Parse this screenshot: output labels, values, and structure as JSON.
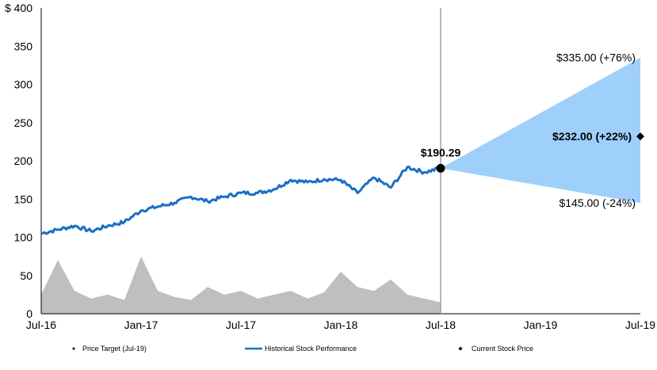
{
  "chart_data": {
    "type": "line",
    "x_ticks": [
      "Jul-16",
      "Jan-17",
      "Jul-17",
      "Jan-18",
      "Jul-18",
      "Jan-19",
      "Jul-19"
    ],
    "y_ticks": [
      "$ 400",
      "350",
      "300",
      "250",
      "200",
      "150",
      "100",
      "50",
      "0"
    ],
    "ylim": [
      0,
      400
    ],
    "grid": false,
    "legend_position": "bottom",
    "legend": [
      {
        "label": "Price Target (Jul-19)",
        "marker": "dot"
      },
      {
        "label": "Historical Stock Performance",
        "marker": "line"
      },
      {
        "label": "Current Stock Price",
        "marker": "diamond"
      }
    ],
    "series": [
      {
        "name": "Historical Stock Performance",
        "color": "#1a6ec8",
        "x": [
          "2016-07",
          "2016-08",
          "2016-09",
          "2016-10",
          "2016-11",
          "2016-12",
          "2017-01",
          "2017-02",
          "2017-03",
          "2017-04",
          "2017-05",
          "2017-06",
          "2017-07",
          "2017-08",
          "2017-09",
          "2017-10",
          "2017-11",
          "2017-12",
          "2018-01",
          "2018-02",
          "2018-03",
          "2018-04",
          "2018-05",
          "2018-06",
          "2018-07"
        ],
        "y": [
          105,
          110,
          115,
          108,
          115,
          120,
          135,
          140,
          145,
          153,
          147,
          153,
          158,
          158,
          163,
          175,
          172,
          176,
          175,
          158,
          178,
          165,
          192,
          185,
          190.29
        ]
      }
    ],
    "volume": {
      "color": "#bfbfbf",
      "x": [
        "2016-07",
        "2016-08",
        "2016-09",
        "2016-10",
        "2016-11",
        "2016-12",
        "2017-01",
        "2017-02",
        "2017-03",
        "2017-04",
        "2017-05",
        "2017-06",
        "2017-07",
        "2017-08",
        "2017-09",
        "2017-10",
        "2017-11",
        "2017-12",
        "2018-01",
        "2018-02",
        "2018-03",
        "2018-04",
        "2018-05",
        "2018-06",
        "2018-07"
      ],
      "y": [
        25,
        70,
        30,
        20,
        25,
        18,
        75,
        30,
        22,
        18,
        35,
        25,
        30,
        20,
        25,
        30,
        20,
        28,
        55,
        35,
        30,
        45,
        25,
        20,
        15
      ]
    },
    "price_target": {
      "date": "Jul-19",
      "high": 335,
      "high_label": "$335.00 (+76%)",
      "mid": 232,
      "mid_label": "$232.00 (+22%)",
      "low": 145,
      "low_label": "$145.00 (-24%)",
      "fill_color": "#9fcffb"
    },
    "current_price": {
      "date": "Jul-18",
      "value": 190.29,
      "label": "$190.29"
    }
  }
}
